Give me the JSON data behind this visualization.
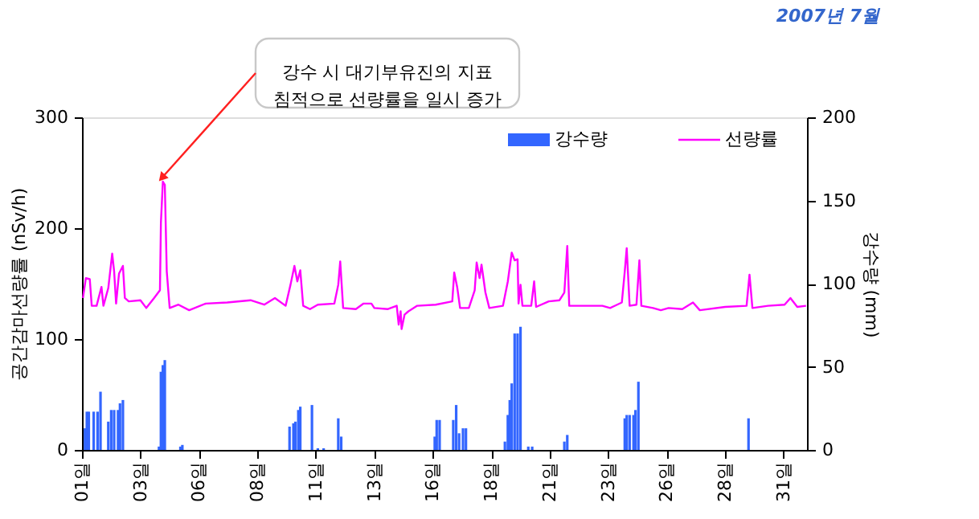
{
  "chart_data": {
    "type": "line",
    "title": "2007년 7월",
    "ylabel": "공간감마선량률 (nSv/h)",
    "y2label": "강수량 (mm)",
    "xlim": [
      "2007-07-01T00:00",
      "2007-08-01T00:00"
    ],
    "xticks": [
      {
        "value": "2007-07-01T00:00",
        "label": "01일"
      },
      {
        "value": "2007-07-03T12:00",
        "label": "03일"
      },
      {
        "value": "2007-07-06T00:00",
        "label": "06일"
      },
      {
        "value": "2007-07-08T12:00",
        "label": "08일"
      },
      {
        "value": "2007-07-11T00:00",
        "label": "11일"
      },
      {
        "value": "2007-07-13T12:00",
        "label": "13일"
      },
      {
        "value": "2007-07-16T00:00",
        "label": "16일"
      },
      {
        "value": "2007-07-18T12:00",
        "label": "18일"
      },
      {
        "value": "2007-07-21T00:00",
        "label": "21일"
      },
      {
        "value": "2007-07-23T12:00",
        "label": "23일"
      },
      {
        "value": "2007-07-26T00:00",
        "label": "26일"
      },
      {
        "value": "2007-07-28T12:00",
        "label": "28일"
      },
      {
        "value": "2007-07-31T00:00",
        "label": "31일"
      }
    ],
    "ylim": [
      0,
      300
    ],
    "yticks": [
      0,
      100,
      200,
      300
    ],
    "y2lim": [
      0,
      200
    ],
    "y2ticks": [
      0,
      50,
      100,
      150,
      200
    ],
    "grid": false,
    "legend": "top right",
    "marker": "none",
    "line_style": "solid",
    "annotations": [
      {
        "text": "강수 시 대기부유진의 지표\n침적으로 선량률을 일시 증가",
        "x": "2007-07-04T11:00",
        "y": 242
      }
    ],
    "series": [
      {
        "name": "강수량",
        "type": "bar",
        "axis": "y2",
        "color": "#3366ff",
        "x": [
          "2007-07-01T03:00",
          "2007-07-01T05:00",
          "2007-07-01T07:00",
          "2007-07-01T12:00",
          "2007-07-01T16:00",
          "2007-07-01T19:00",
          "2007-07-02T03:00",
          "2007-07-02T06:00",
          "2007-07-02T09:00",
          "2007-07-02T13:00",
          "2007-07-02T15:00",
          "2007-07-02T18:00",
          "2007-07-04T07:00",
          "2007-07-04T09:00",
          "2007-07-04T11:00",
          "2007-07-04T13:00",
          "2007-07-05T05:00",
          "2007-07-05T07:00",
          "2007-07-09T21:00",
          "2007-07-10T01:00",
          "2007-07-10T03:00",
          "2007-07-10T06:00",
          "2007-07-10T08:00",
          "2007-07-10T20:00",
          "2007-07-11T02:00",
          "2007-07-11T08:00",
          "2007-07-11T23:00",
          "2007-07-12T02:00",
          "2007-07-16T02:00",
          "2007-07-16T04:00",
          "2007-07-16T07:00",
          "2007-07-16T21:00",
          "2007-07-17T00:00",
          "2007-07-17T03:00",
          "2007-07-17T07:00",
          "2007-07-17T10:00",
          "2007-07-19T02:00",
          "2007-07-19T05:00",
          "2007-07-19T07:00",
          "2007-07-19T09:00",
          "2007-07-19T12:00",
          "2007-07-19T15:00",
          "2007-07-19T18:00",
          "2007-07-20T02:00",
          "2007-07-20T06:00",
          "2007-07-21T15:00",
          "2007-07-21T18:00",
          "2007-07-24T05:00",
          "2007-07-24T07:00",
          "2007-07-24T10:00",
          "2007-07-24T14:00",
          "2007-07-24T16:00",
          "2007-07-24T19:00",
          "2007-07-29T12:00"
        ],
        "values": [
          13,
          23,
          23,
          23,
          23,
          35,
          17,
          24,
          24,
          24,
          28,
          30,
          2,
          47,
          51,
          54,
          2,
          3,
          14,
          16,
          17,
          24,
          26,
          27,
          1,
          1,
          19,
          8,
          8,
          18,
          18,
          18,
          27,
          10,
          13,
          13,
          5,
          21,
          30,
          40,
          70,
          70,
          74,
          2,
          2,
          5,
          9,
          19,
          21,
          21,
          21,
          24,
          41,
          19
        ]
      },
      {
        "name": "선량률",
        "type": "line",
        "axis": "y",
        "color": "#ff00ff",
        "x": [
          "2007-07-01T01:00",
          "2007-07-01T04:00",
          "2007-07-01T08:00",
          "2007-07-01T10:00",
          "2007-07-01T15:00",
          "2007-07-01T20:00",
          "2007-07-01T22:00",
          "2007-07-02T03:00",
          "2007-07-02T07:00",
          "2007-07-02T09:00",
          "2007-07-02T11:00",
          "2007-07-02T14:00",
          "2007-07-02T18:00",
          "2007-07-02T20:00",
          "2007-07-03T00:00",
          "2007-07-03T12:00",
          "2007-07-03T18:00",
          "2007-07-04T02:00",
          "2007-07-04T08:00",
          "2007-07-04T09:00",
          "2007-07-04T11:00",
          "2007-07-04T13:00",
          "2007-07-04T15:00",
          "2007-07-04T18:00",
          "2007-07-05T03:00",
          "2007-07-05T14:00",
          "2007-07-06T07:00",
          "2007-07-07T05:00",
          "2007-07-08T05:00",
          "2007-07-08T19:00",
          "2007-07-09T06:00",
          "2007-07-09T17:00",
          "2007-07-09T22:00",
          "2007-07-10T02:00",
          "2007-07-10T05:00",
          "2007-07-10T08:00",
          "2007-07-10T11:00",
          "2007-07-10T18:00",
          "2007-07-11T02:00",
          "2007-07-11T19:00",
          "2007-07-11T23:00",
          "2007-07-12T01:00",
          "2007-07-12T04:00",
          "2007-07-12T17:00",
          "2007-07-13T01:00",
          "2007-07-13T09:00",
          "2007-07-13T12:00",
          "2007-07-14T02:00",
          "2007-07-14T11:00",
          "2007-07-14T13:00",
          "2007-07-14T15:00",
          "2007-07-14T16:00",
          "2007-07-14T19:00",
          "2007-07-14T23:00",
          "2007-07-15T08:00",
          "2007-07-16T03:00",
          "2007-07-16T20:00",
          "2007-07-16T22:00",
          "2007-07-17T01:00",
          "2007-07-17T04:00",
          "2007-07-17T13:00",
          "2007-07-17T19:00",
          "2007-07-17T21:00",
          "2007-07-18T00:00",
          "2007-07-18T02:00",
          "2007-07-18T06:00",
          "2007-07-18T10:00",
          "2007-07-19T00:00",
          "2007-07-19T05:00",
          "2007-07-19T09:00",
          "2007-07-19T12:00",
          "2007-07-19T15:00",
          "2007-07-19T16:00",
          "2007-07-19T18:00",
          "2007-07-19T20:00",
          "2007-07-20T05:00",
          "2007-07-20T08:00",
          "2007-07-20T10:00",
          "2007-07-20T23:00",
          "2007-07-21T10:00",
          "2007-07-21T15:00",
          "2007-07-21T18:00",
          "2007-07-21T20:00",
          "2007-07-22T08:00",
          "2007-07-23T06:00",
          "2007-07-23T14:00",
          "2007-07-24T02:00",
          "2007-07-24T05:00",
          "2007-07-24T07:00",
          "2007-07-24T10:00",
          "2007-07-24T17:00",
          "2007-07-24T20:00",
          "2007-07-24T22:00",
          "2007-07-25T10:00",
          "2007-07-25T18:00",
          "2007-07-26T02:00",
          "2007-07-26T16:00",
          "2007-07-27T03:00",
          "2007-07-27T10:00",
          "2007-07-28T12:00",
          "2007-07-29T10:00",
          "2007-07-29T13:00",
          "2007-07-29T16:00",
          "2007-07-30T08:00",
          "2007-07-31T01:00",
          "2007-07-31T07:00",
          "2007-07-31T14:00",
          "2007-07-31T23:00"
        ],
        "values": [
          137,
          155,
          154,
          130,
          130,
          147,
          130,
          146,
          177,
          161,
          132,
          159,
          166,
          137,
          134,
          135,
          128,
          137,
          144,
          205,
          242,
          239,
          161,
          128,
          131,
          126,
          132,
          133,
          135,
          131,
          137,
          130,
          149,
          166,
          152,
          162,
          130,
          127,
          131,
          132,
          149,
          170,
          128,
          127,
          132,
          132,
          128,
          127,
          130,
          113,
          125,
          109,
          122,
          125,
          130,
          131,
          134,
          160,
          147,
          128,
          128,
          144,
          169,
          155,
          167,
          142,
          128,
          130,
          152,
          178,
          171,
          172,
          132,
          149,
          130,
          130,
          152,
          129,
          134,
          135,
          142,
          184,
          130,
          130,
          130,
          128,
          133,
          161,
          182,
          130,
          131,
          171,
          130,
          128,
          126,
          128,
          127,
          133,
          126,
          129,
          130,
          158,
          128,
          130,
          131,
          137,
          129,
          130
        ]
      }
    ]
  }
}
